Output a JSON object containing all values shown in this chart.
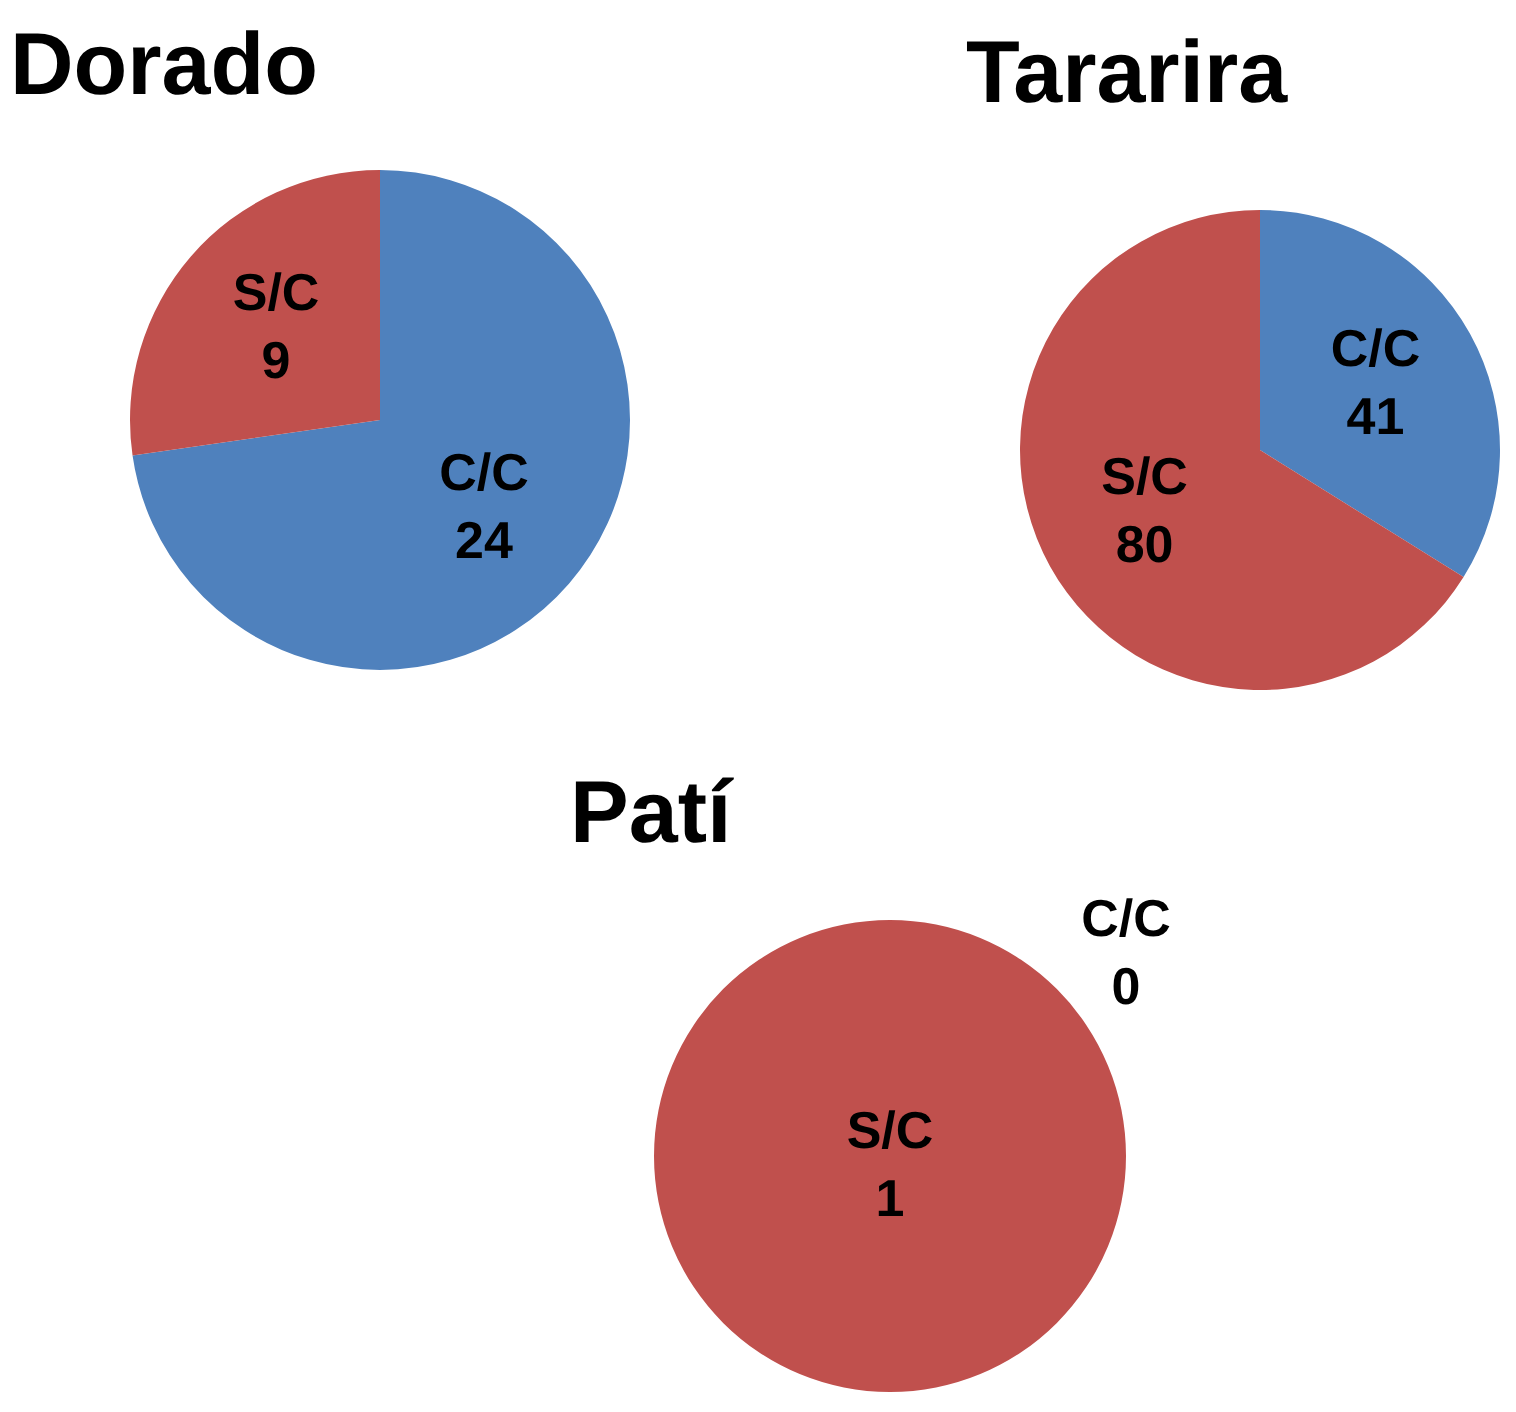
{
  "chart_data": [
    {
      "type": "pie",
      "title": "Dorado",
      "categories": [
        "C/C",
        "S/C"
      ],
      "values": [
        24,
        9
      ],
      "colors": [
        "#4f81bd",
        "#c0504d"
      ],
      "data_labels": true,
      "legend": false
    },
    {
      "type": "pie",
      "title": "Tararira",
      "categories": [
        "C/C",
        "S/C"
      ],
      "values": [
        41,
        80
      ],
      "colors": [
        "#4f81bd",
        "#c0504d"
      ],
      "data_labels": true,
      "legend": false
    },
    {
      "type": "pie",
      "title": "Patí",
      "categories": [
        "C/C",
        "S/C"
      ],
      "values": [
        0,
        1
      ],
      "value_labels": [
        "0",
        "1"
      ],
      "colors": [
        "#4f81bd",
        "#c0504d"
      ],
      "legend": false
    }
  ]
}
